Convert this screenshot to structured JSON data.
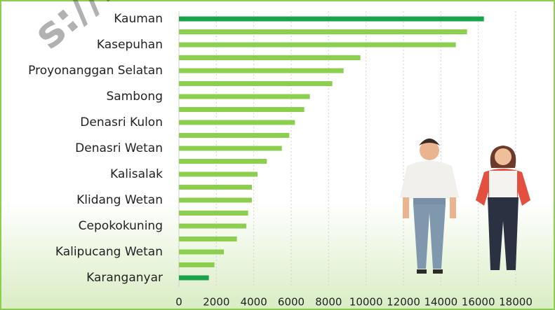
{
  "chart_data": {
    "type": "hbar",
    "watermark": "s://batang",
    "categories": [
      "Kauman",
      null,
      "Kasepuhan",
      null,
      "Proyonanggan Selatan",
      null,
      "Sambong",
      null,
      "Denasri Kulon",
      null,
      "Denasri Wetan",
      null,
      "Kalisalak",
      null,
      "Klidang Wetan",
      null,
      "Cepokokuning",
      null,
      "Kalipucang Wetan",
      null,
      "Karanganyar"
    ],
    "values": [
      16300,
      15400,
      14800,
      9700,
      8800,
      8200,
      7000,
      6700,
      6200,
      5900,
      5500,
      4700,
      4200,
      3900,
      3900,
      3700,
      3600,
      3100,
      2400,
      1900,
      1600
    ],
    "colors": [
      "#1aa34a",
      "#8ccf4e",
      "#8ccf4e",
      "#8ccf4e",
      "#8ccf4e",
      "#8ccf4e",
      "#8ccf4e",
      "#8ccf4e",
      "#8ccf4e",
      "#8ccf4e",
      "#8ccf4e",
      "#8ccf4e",
      "#8ccf4e",
      "#8ccf4e",
      "#8ccf4e",
      "#8ccf4e",
      "#8ccf4e",
      "#8ccf4e",
      "#8ccf4e",
      "#8ccf4e",
      "#1aa34a"
    ],
    "xlim": [
      0,
      18000
    ],
    "xticks": [
      0,
      2000,
      4000,
      6000,
      8000,
      10000,
      12000,
      14000,
      16000,
      18000
    ],
    "grid": true
  }
}
